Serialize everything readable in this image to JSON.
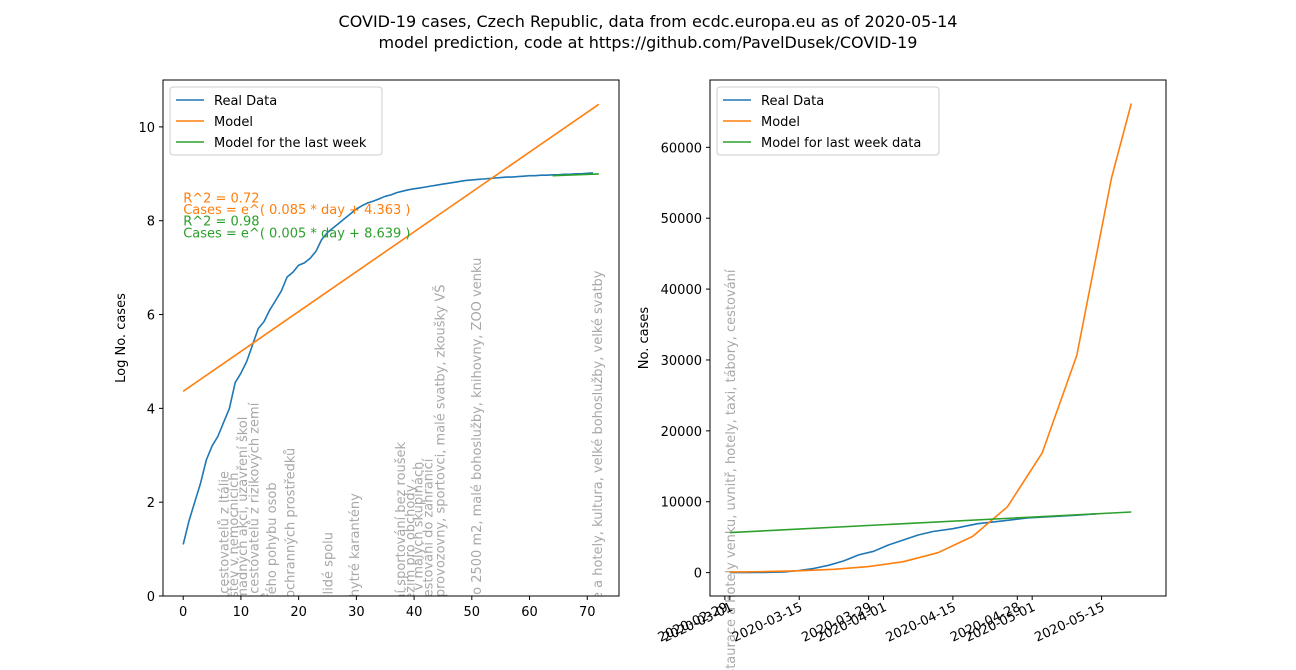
{
  "figure": {
    "title_line1": "COVID-19 cases, Czech Republic, data from ecdc.europa.eu as of 2020-05-14",
    "title_line2": "model prediction, code at https://github.com/PavelDusek/COVID-19"
  },
  "colors": {
    "real": "#1f77b4",
    "model": "#ff7f0e",
    "last_week": "#2ca02c",
    "events": "#a8a8a8"
  },
  "chart_data": [
    {
      "type": "line",
      "xlabel": "",
      "ylabel": "Log No. cases",
      "xlim": [
        -3.5,
        75.5
      ],
      "ylim": [
        0,
        11
      ],
      "xticks": [
        0,
        10,
        20,
        30,
        40,
        50,
        60,
        70
      ],
      "yticks": [
        0,
        2,
        4,
        6,
        8,
        10
      ],
      "legend_position": "upper left",
      "series": [
        {
          "name": "Real Data",
          "color": "#1f77b4",
          "x": [
            0,
            1,
            2,
            3,
            4,
            5,
            6,
            7,
            8,
            9,
            10,
            11,
            12,
            13,
            14,
            15,
            16,
            17,
            18,
            19,
            20,
            21,
            22,
            23,
            24,
            25,
            26,
            27,
            28,
            29,
            30,
            31,
            32,
            33,
            34,
            35,
            36,
            37,
            38,
            39,
            40,
            41,
            42,
            43,
            44,
            45,
            46,
            47,
            48,
            49,
            50,
            51,
            52,
            53,
            54,
            55,
            56,
            57,
            58,
            59,
            60,
            61,
            62,
            63,
            64,
            65,
            66,
            67,
            68,
            69,
            70,
            71
          ],
          "y": [
            1.1,
            1.6,
            2.0,
            2.4,
            2.9,
            3.2,
            3.4,
            3.7,
            4.0,
            4.55,
            4.75,
            5.0,
            5.35,
            5.7,
            5.85,
            6.1,
            6.3,
            6.5,
            6.8,
            6.9,
            7.05,
            7.1,
            7.2,
            7.35,
            7.6,
            7.75,
            7.85,
            7.95,
            8.05,
            8.15,
            8.25,
            8.32,
            8.38,
            8.42,
            8.47,
            8.52,
            8.55,
            8.6,
            8.63,
            8.66,
            8.68,
            8.7,
            8.72,
            8.74,
            8.76,
            8.78,
            8.8,
            8.82,
            8.84,
            8.86,
            8.87,
            8.88,
            8.89,
            8.9,
            8.91,
            8.92,
            8.93,
            8.93,
            8.94,
            8.95,
            8.96,
            8.96,
            8.97,
            8.97,
            8.98,
            8.98,
            8.99,
            8.99,
            9.0,
            9.0,
            9.01,
            9.02
          ]
        },
        {
          "name": "Model",
          "color": "#ff7f0e",
          "x": [
            0,
            72
          ],
          "y": [
            4.363,
            10.483
          ]
        },
        {
          "name": "Model for the last week",
          "color": "#2ca02c",
          "x": [
            64,
            72
          ],
          "y": [
            8.959,
            8.999
          ]
        }
      ],
      "annotations": [
        {
          "text": "R^2 = 0.72",
          "color": "#ff7f0e",
          "x": 0,
          "y": 8.5
        },
        {
          "text": "Cases = e^( 0.085 * day + 4.363 )",
          "color": "#ff7f0e",
          "x": 0,
          "y": 8.25
        },
        {
          "text": "R^2 = 0.98",
          "color": "#2ca02c",
          "x": 0,
          "y": 8.0
        },
        {
          "text": "Cases = e^( 0.005 * day + 8.639 )",
          "color": "#2ca02c",
          "x": 0,
          "y": 7.75
        }
      ],
      "events": [
        {
          "x": 7.0,
          "text": "Karanténa cestovatelů z Itálie"
        },
        {
          "x": 8.6,
          "text": "Zákaz návštěv v nemocnicích"
        },
        {
          "x": 10.2,
          "text": "Zákaz hromadných akcí, uzavření škol"
        },
        {
          "x": 12.2,
          "text": "Karanténa cestovatelů z rizikových zemí"
        },
        {
          "x": 13.8,
          "text": "Stav nouze"
        },
        {
          "x": 15.2,
          "text": "Zákaz volného pohybu osob"
        },
        {
          "x": 18.4,
          "text": "Povinnost ochranných prostředků"
        },
        {
          "x": 25.0,
          "text": "Pouze dva lidé spolu"
        },
        {
          "x": 29.6,
          "text": "Spuštění chytré karantény"
        },
        {
          "x": 37.6,
          "text": "Individuální sportování bez roušek"
        },
        {
          "x": 39.2,
          "text": "Upraven režim pro obchody"
        },
        {
          "x": 40.6,
          "text": "Sportování v malých skupinách"
        },
        {
          "x": 42.3,
          "text": "Nouzové cestování do zahraničí"
        },
        {
          "x": 44.4,
          "text": "Řemeslné provozovny, sportovci, malé svatby, zkoušky VŠ"
        },
        {
          "x": 50.7,
          "text": "Obchody do 2500 m2, malé bohoslužby, knihovny, ZOO venku"
        },
        {
          "x": 71.7,
          "text": "Restaurace a hotely, kultura, velké bohoslužby, velké svatby"
        }
      ]
    },
    {
      "type": "line",
      "xlabel": "",
      "ylabel": "No. cases",
      "ylim": [
        -3300,
        69500
      ],
      "xlim": [
        "2020-02-26",
        "2020-05-28"
      ],
      "yticks": [
        0,
        10000,
        20000,
        30000,
        40000,
        50000,
        60000
      ],
      "xticks": [
        "2020-03-01",
        "2020-03-15",
        "2020-04-01",
        "2020-04-15",
        "2020-05-01",
        "2020-05-15"
      ],
      "extra_xtick_labels": [
        "2020-02-29",
        "2020-03-29",
        "2020-04-28"
      ],
      "legend_position": "upper left",
      "series": [
        {
          "name": "Real Data",
          "color": "#1f77b4",
          "x": [
            "2020-03-01",
            "2020-03-08",
            "2020-03-12",
            "2020-03-15",
            "2020-03-18",
            "2020-03-21",
            "2020-03-24",
            "2020-03-27",
            "2020-03-30",
            "2020-04-02",
            "2020-04-05",
            "2020-04-08",
            "2020-04-11",
            "2020-04-15",
            "2020-04-20",
            "2020-04-25",
            "2020-04-30",
            "2020-05-05",
            "2020-05-10",
            "2020-05-14"
          ],
          "y": [
            3,
            30,
            100,
            300,
            600,
            1050,
            1650,
            2500,
            3000,
            3900,
            4600,
            5300,
            5800,
            6200,
            6900,
            7300,
            7700,
            7900,
            8100,
            8300
          ]
        },
        {
          "name": "Model",
          "color": "#ff7f0e",
          "x": [
            "2020-03-01",
            "2020-03-08",
            "2020-03-15",
            "2020-03-22",
            "2020-03-29",
            "2020-04-05",
            "2020-04-12",
            "2020-04-19",
            "2020-04-26",
            "2020-05-03",
            "2020-05-10",
            "2020-05-17",
            "2020-05-21"
          ],
          "y": [
            78,
            142,
            258,
            468,
            851,
            1546,
            2810,
            5106,
            9279,
            16862,
            30641,
            55680,
            66200
          ]
        },
        {
          "name": "Model for last week data",
          "color": "#2ca02c",
          "x": [
            "2020-03-01",
            "2020-05-21"
          ],
          "y": [
            5650,
            8550
          ]
        }
      ],
      "events": [
        {
          "x": "2020-03-01",
          "text": "Restaurace a hotely venku, uvnitř, hotely, taxi, tábory, cestování"
        }
      ]
    }
  ]
}
